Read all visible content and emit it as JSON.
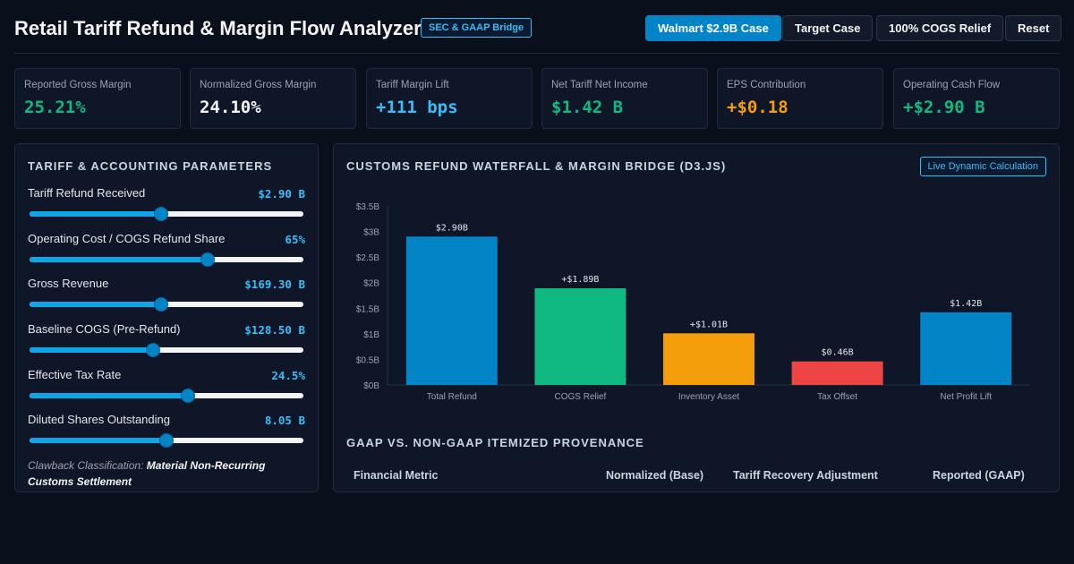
{
  "header": {
    "title": "Retail Tariff Refund & Margin Flow Analyzer",
    "badge": "SEC & GAAP Bridge",
    "buttons": [
      "Walmart $2.9B Case",
      "Target Case",
      "100% COGS Relief",
      "Reset"
    ]
  },
  "kpis": [
    {
      "label": "Reported Gross Margin",
      "value": "25.21%",
      "color": "#10b981"
    },
    {
      "label": "Normalized Gross Margin",
      "value": "24.10%",
      "color": "#f3f4f6"
    },
    {
      "label": "Tariff Margin Lift",
      "value": "+111 bps",
      "color": "#38bdf8"
    },
    {
      "label": "Net Tariff Net Income",
      "value": "$1.42 B",
      "color": "#10b981"
    },
    {
      "label": "EPS Contribution",
      "value": "+$0.18",
      "color": "#f59e0b"
    },
    {
      "label": "Operating Cash Flow",
      "value": "+$2.90 B",
      "color": "#10b981"
    }
  ],
  "params": {
    "title": "Tariff & Accounting Parameters",
    "items": [
      {
        "label": "Tariff Refund Received",
        "value": "$2.90 B",
        "level": 0.48
      },
      {
        "label": "Operating Cost / COGS Refund Share",
        "value": "65%",
        "level": 0.65
      },
      {
        "label": "Gross Revenue",
        "value": "$169.30 B",
        "level": 0.48
      },
      {
        "label": "Baseline COGS (Pre-Refund)",
        "value": "$128.50 B",
        "level": 0.45
      },
      {
        "label": "Effective Tax Rate",
        "value": "24.5%",
        "level": 0.58
      },
      {
        "label": "Diluted Shares Outstanding",
        "value": "8.05 B",
        "level": 0.5
      }
    ],
    "clawback_prefix": "Clawback Classification:",
    "clawback_value": "Material Non-Recurring Customs Settlement"
  },
  "waterfall": {
    "title": "Customs Refund Waterfall & Margin Bridge (D3.js)",
    "badge": "Live Dynamic Calculation"
  },
  "chart_data": {
    "type": "bar",
    "categories": [
      "Total Refund",
      "COGS Relief",
      "Inventory Asset",
      "Tax Offset",
      "Net Profit Lift"
    ],
    "values": [
      2.9,
      1.89,
      1.01,
      0.46,
      1.42
    ],
    "data_labels": [
      "$2.90B",
      "+$1.89B",
      "+$1.01B",
      "$0.46B",
      "$1.42B"
    ],
    "colors": [
      "#0284c7",
      "#10b981",
      "#f59e0b",
      "#ef4444",
      "#0284c7"
    ],
    "yticks": [
      "$0B",
      "$0.5B",
      "$1B",
      "$1.5B",
      "$2B",
      "$2.5B",
      "$3B",
      "$3.5B"
    ],
    "ylim": [
      0,
      3.5
    ]
  },
  "provenance": {
    "title": "GAAP vs. Non-GAAP Itemized Provenance",
    "columns": [
      "Financial Metric",
      "Normalized (Base)",
      "Tariff Recovery Adjustment",
      "Reported (GAAP)"
    ]
  }
}
